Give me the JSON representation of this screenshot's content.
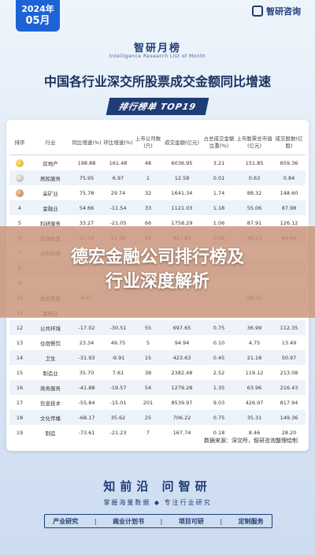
{
  "header": {
    "year": "2024年",
    "month": "05月",
    "logo_text": "智研咨询",
    "brand_cn": "智研月榜",
    "brand_en": "Intelligence Research List of Month",
    "main_title": "中国各行业深交所股票成交金额同比增速",
    "rank_tag": "排行榜单  TOP19"
  },
  "table": {
    "columns": [
      "排序",
      "行业",
      "同比增速(%)",
      "环比增速(%)",
      "上市公司数(只)",
      "成交金额(亿元)",
      "占总成交金额比重(%)",
      "上市股票总市值(亿元)",
      "成交股数(亿股)"
    ],
    "rows": [
      {
        "rank": "",
        "medal": "gold",
        "industry": "房地产",
        "yoy": "198.88",
        "mom": "161.48",
        "count": "48",
        "amount": "6036.95",
        "share": "3.21",
        "cap": "151.85",
        "volume": "659.36"
      },
      {
        "rank": "",
        "medal": "silver",
        "industry": "居民服务",
        "yoy": "75.95",
        "mom": "6.97",
        "count": "1",
        "amount": "12.58",
        "share": "0.01",
        "cap": "0.63",
        "volume": "0.84"
      },
      {
        "rank": "",
        "medal": "bronze",
        "industry": "采矿业",
        "yoy": "75.78",
        "mom": "29.74",
        "count": "32",
        "amount": "1641.34",
        "share": "1.74",
        "cap": "88.32",
        "volume": "148.60"
      },
      {
        "rank": "4",
        "medal": "",
        "industry": "金融业",
        "yoy": "54.66",
        "mom": "-11.54",
        "count": "33",
        "amount": "1121.03",
        "share": "1.18",
        "cap": "55.06",
        "volume": "87.98"
      },
      {
        "rank": "5",
        "medal": "",
        "industry": "科研服务",
        "yoy": "33.27",
        "mom": "-21.05",
        "count": "66",
        "amount": "1758.29",
        "share": "1.06",
        "cap": "87.91",
        "volume": "126.12"
      },
      {
        "rank": "6",
        "medal": "",
        "industry": "农林牧渔",
        "yoy": "31.79",
        "mom": "21.98",
        "count": "29",
        "amount": "927.63",
        "share": "0.98",
        "cap": "46.13",
        "volume": "84.64"
      },
      {
        "rank": "7",
        "medal": "",
        "industry": "水利环境",
        "yoy": "",
        "mom": "",
        "count": "",
        "amount": "",
        "share": "",
        "cap": "",
        "volume": ""
      },
      {
        "rank": "8",
        "medal": "",
        "industry": "",
        "yoy": "",
        "mom": "",
        "count": "",
        "amount": "",
        "share": "",
        "cap": "",
        "volume": ""
      },
      {
        "rank": "9",
        "medal": "",
        "industry": "",
        "yoy": "",
        "mom": "",
        "count": "",
        "amount": "",
        "share": "",
        "cap": "",
        "volume": ""
      },
      {
        "rank": "10",
        "medal": "",
        "industry": "批发零售",
        "yoy": "8.47",
        "mom": "",
        "count": "",
        "amount": "",
        "share": "",
        "cap": "99.15",
        "volume": ""
      },
      {
        "rank": "11",
        "medal": "",
        "industry": "建筑业",
        "yoy": "",
        "mom": "",
        "count": "",
        "amount": "",
        "share": "",
        "cap": "",
        "volume": ""
      },
      {
        "rank": "12",
        "medal": "",
        "industry": "公共环境",
        "yoy": "-17.02",
        "mom": "-30.51",
        "count": "55",
        "amount": "697.65",
        "share": "0.75",
        "cap": "36.99",
        "volume": "112.35"
      },
      {
        "rank": "13",
        "medal": "",
        "industry": "住宿餐饮",
        "yoy": "23.34",
        "mom": "49.75",
        "count": "5",
        "amount": "94.94",
        "share": "0.10",
        "cap": "4.75",
        "volume": "13.49"
      },
      {
        "rank": "14",
        "medal": "",
        "industry": "卫生",
        "yoy": "-31.93",
        "mom": "-9.91",
        "count": "15",
        "amount": "423.63",
        "share": "0.45",
        "cap": "21.18",
        "volume": "50.97"
      },
      {
        "rank": "15",
        "medal": "",
        "industry": "制造业",
        "yoy": "35.70",
        "mom": "7.61",
        "count": "38",
        "amount": "2382.48",
        "share": "2.52",
        "cap": "119.12",
        "volume": "213.08"
      },
      {
        "rank": "16",
        "medal": "",
        "industry": "商务服务",
        "yoy": "-41.88",
        "mom": "-19.57",
        "count": "54",
        "amount": "1279.28",
        "share": "1.35",
        "cap": "63.96",
        "volume": "216.43"
      },
      {
        "rank": "17",
        "medal": "",
        "industry": "信息技术",
        "yoy": "-55.84",
        "mom": "-15.01",
        "count": "201",
        "amount": "8539.97",
        "share": "9.03",
        "cap": "426.97",
        "volume": "817.94"
      },
      {
        "rank": "18",
        "medal": "",
        "industry": "文化传播",
        "yoy": "-68.17",
        "mom": "35.62",
        "count": "25",
        "amount": "706.22",
        "share": "0.75",
        "cap": "35.31",
        "volume": "149.36"
      },
      {
        "rank": "19",
        "medal": "",
        "industry": "制造",
        "yoy": "-73.61",
        "mom": "-21.23",
        "count": "7",
        "amount": "167.74",
        "share": "0.18",
        "cap": "8.46",
        "volume": "28.20"
      }
    ],
    "source": "数据来源：深交所，智研咨询整理绘制"
  },
  "overlay": {
    "line1": "德宏金融公司排行榜及",
    "line2": "行业深度解析"
  },
  "footer": {
    "brand": "知前沿 问智研",
    "slogan": "掌握海量数据 ◆ 专注行业研究",
    "services": [
      "产业研究",
      "商业计划书",
      "项目可研",
      "定制服务"
    ]
  }
}
